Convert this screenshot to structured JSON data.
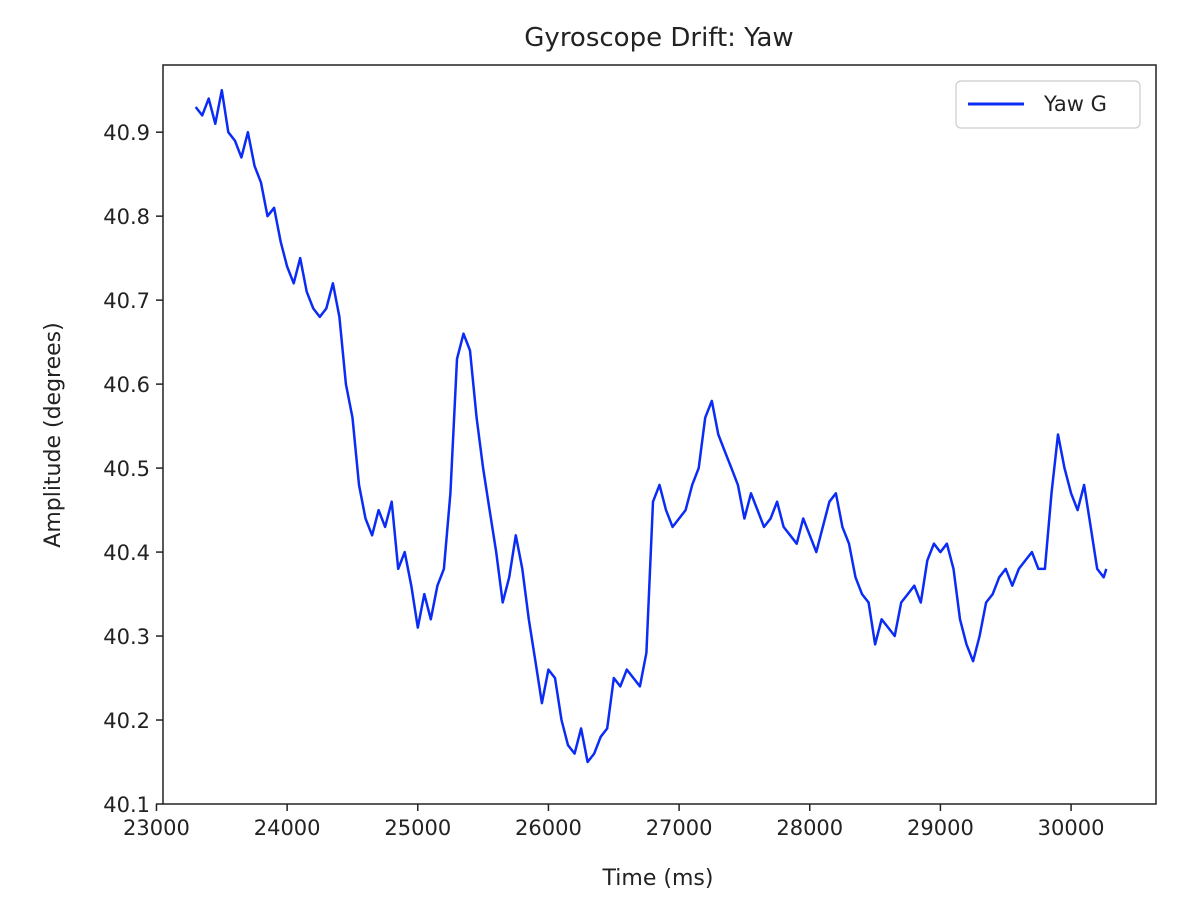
{
  "chart_data": {
    "type": "line",
    "title": "Gyroscope Drift: Yaw",
    "xlabel": "Time (ms)",
    "ylabel": "Amplitude (degrees)",
    "xlim": [
      23050,
      30650
    ],
    "ylim": [
      40.1,
      40.98
    ],
    "x_ticks": [
      23000,
      24000,
      25000,
      26000,
      27000,
      28000,
      29000,
      30000
    ],
    "x_tick_labels": [
      "23000",
      "24000",
      "25000",
      "26000",
      "27000",
      "28000",
      "29000",
      "30000"
    ],
    "y_ticks": [
      40.1,
      40.2,
      40.3,
      40.4,
      40.5,
      40.6,
      40.7,
      40.8,
      40.9
    ],
    "y_tick_labels": [
      "40.1",
      "40.2",
      "40.3",
      "40.4",
      "40.5",
      "40.6",
      "40.7",
      "40.8",
      "40.9"
    ],
    "grid": false,
    "legend": {
      "position": "top-right",
      "entries": [
        "Yaw G"
      ]
    },
    "series": [
      {
        "name": "Yaw G",
        "color": "#0a2cf5",
        "x": [
          23300,
          23350,
          23400,
          23450,
          23500,
          23550,
          23600,
          23650,
          23700,
          23750,
          23800,
          23850,
          23900,
          23950,
          24000,
          24050,
          24100,
          24150,
          24200,
          24250,
          24300,
          24350,
          24400,
          24450,
          24500,
          24550,
          24600,
          24650,
          24700,
          24750,
          24800,
          24850,
          24900,
          24950,
          25000,
          25050,
          25100,
          25150,
          25200,
          25250,
          25300,
          25350,
          25400,
          25450,
          25500,
          25550,
          25600,
          25650,
          25700,
          25750,
          25800,
          25850,
          25900,
          25950,
          26000,
          26050,
          26100,
          26150,
          26200,
          26250,
          26300,
          26350,
          26400,
          26450,
          26500,
          26550,
          26600,
          26650,
          26700,
          26750,
          26800,
          26850,
          26900,
          26950,
          27000,
          27050,
          27100,
          27150,
          27200,
          27250,
          27300,
          27350,
          27400,
          27450,
          27500,
          27550,
          27600,
          27650,
          27700,
          27750,
          27800,
          27850,
          27900,
          27950,
          28000,
          28050,
          28100,
          28150,
          28200,
          28250,
          28300,
          28350,
          28400,
          28450,
          28500,
          28550,
          28600,
          28650,
          28700,
          28750,
          28800,
          28850,
          28900,
          28950,
          29000,
          29050,
          29100,
          29150,
          29200,
          29250,
          29300,
          29350,
          29400,
          29450,
          29500,
          29550,
          29600,
          29650,
          29700,
          29750,
          29800,
          29850,
          29900,
          29950,
          30000,
          30050,
          30100,
          30150,
          30200,
          30250,
          30270
        ],
        "y": [
          40.93,
          40.92,
          40.94,
          40.91,
          40.95,
          40.9,
          40.89,
          40.87,
          40.9,
          40.86,
          40.84,
          40.8,
          40.81,
          40.77,
          40.74,
          40.72,
          40.75,
          40.71,
          40.69,
          40.68,
          40.69,
          40.72,
          40.68,
          40.6,
          40.56,
          40.48,
          40.44,
          40.42,
          40.45,
          40.43,
          40.46,
          40.38,
          40.4,
          40.36,
          40.31,
          40.35,
          40.32,
          40.36,
          40.38,
          40.47,
          40.63,
          40.66,
          40.64,
          40.56,
          40.5,
          40.45,
          40.4,
          40.34,
          40.37,
          40.42,
          40.38,
          40.32,
          40.27,
          40.22,
          40.26,
          40.25,
          40.2,
          40.17,
          40.16,
          40.19,
          40.15,
          40.16,
          40.18,
          40.19,
          40.25,
          40.24,
          40.26,
          40.25,
          40.24,
          40.28,
          40.46,
          40.48,
          40.45,
          40.43,
          40.44,
          40.45,
          40.48,
          40.5,
          40.56,
          40.58,
          40.54,
          40.52,
          40.5,
          40.48,
          40.44,
          40.47,
          40.45,
          40.43,
          40.44,
          40.46,
          40.43,
          40.42,
          40.41,
          40.44,
          40.42,
          40.4,
          40.43,
          40.46,
          40.47,
          40.43,
          40.41,
          40.37,
          40.35,
          40.34,
          40.29,
          40.32,
          40.31,
          40.3,
          40.34,
          40.35,
          40.36,
          40.34,
          40.39,
          40.41,
          40.4,
          40.41,
          40.38,
          40.32,
          40.29,
          40.27,
          40.3,
          40.34,
          40.35,
          40.37,
          40.38,
          40.36,
          40.38,
          40.39,
          40.4,
          40.38,
          40.38,
          40.47,
          40.54,
          40.5,
          40.47,
          40.45,
          40.48,
          40.43,
          40.38,
          40.37,
          40.38
        ]
      }
    ]
  }
}
